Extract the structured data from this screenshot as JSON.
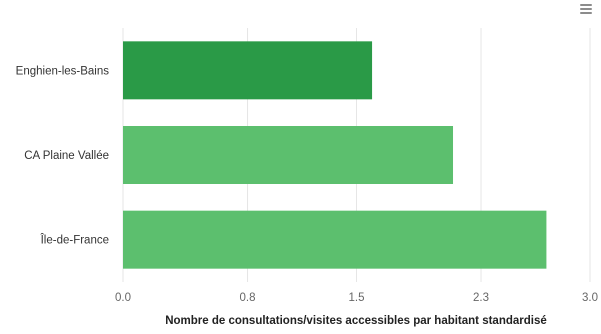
{
  "chart_data": {
    "type": "bar",
    "orientation": "horizontal",
    "categories": [
      "Enghien-les-Bains",
      "CA Plaine Vallée",
      "Île-de-France"
    ],
    "values": [
      1.6,
      2.12,
      2.72
    ],
    "bar_colors": [
      "#2a9a47",
      "#5cbf6e",
      "#5cbf6e"
    ],
    "xlabel": "Nombre de consultations/visites accessibles par habitant standardisé",
    "ylabel": "",
    "xlim": [
      0,
      3.0
    ],
    "xticks": [
      0.0,
      0.8,
      1.5,
      2.3,
      3.0
    ],
    "xtick_labels": [
      "0.0",
      "0.8",
      "1.5",
      "2.3",
      "3.0"
    ],
    "grid": true,
    "legend": null
  },
  "toolbar": {
    "menu_icon": "hamburger-menu-icon"
  }
}
